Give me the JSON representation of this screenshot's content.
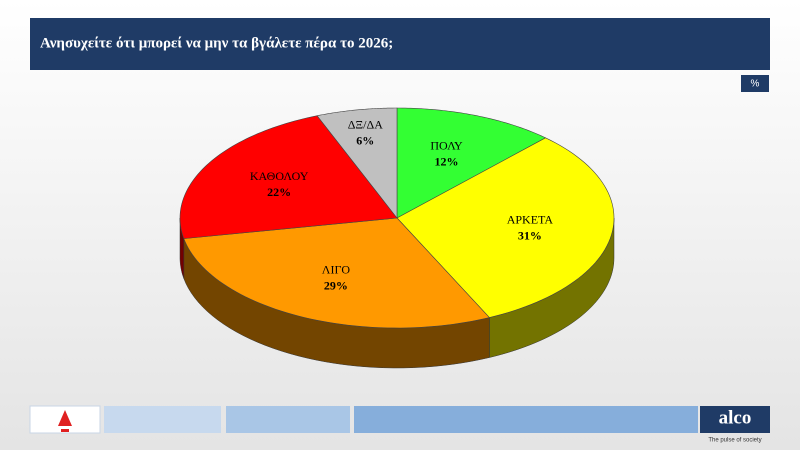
{
  "chart_data": {
    "type": "pie3d",
    "title": "Ανησυχείτε ότι μπορεί να μην τα βγάλετε πέρα το 2026;",
    "unit_badge": "%",
    "categories": [
      "ΠΟΛΥ",
      "ΑΡΚΕΤΑ",
      "ΛΙΓΟ",
      "ΚΑΘΟΛΟΥ",
      "ΔΞ/ΔΑ"
    ],
    "values": [
      12,
      31,
      29,
      22,
      6
    ],
    "value_labels": [
      "12%",
      "31%",
      "29%",
      "22%",
      "6%"
    ],
    "colors": [
      "#33ff33",
      "#ffff00",
      "#ff9900",
      "#ff0000",
      "#c0c0c0"
    ]
  },
  "footer": {
    "brand": "alco",
    "tagline": "The pulse of society"
  }
}
